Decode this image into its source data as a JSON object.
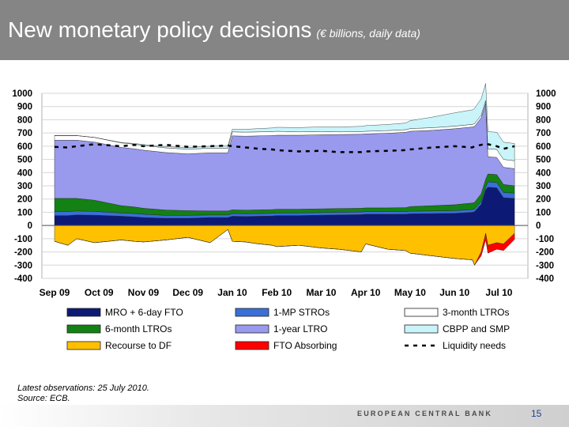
{
  "slide": {
    "title": "New monetary policy decisions",
    "subtitle": "(€ billions, daily data)",
    "note_latest": "Latest observations: 25 July 2010.",
    "note_source": "Source: ECB.",
    "footer_org": "EUROPEAN CENTRAL BANK",
    "page_number": "15"
  },
  "chart_data": {
    "type": "area",
    "title": "",
    "xlabel": "",
    "ylabel": "",
    "ylim": [
      -400,
      1000
    ],
    "yticks": [
      "1000",
      "900",
      "800",
      "700",
      "600",
      "500",
      "400",
      "300",
      "200",
      "100",
      "0",
      "-100",
      "-200",
      "-300",
      "-400"
    ],
    "grid": true,
    "dual_y_axis": true,
    "legend_position": "bottom",
    "x_ticks": [
      "Sep 09",
      "Oct 09",
      "Nov 09",
      "Dec 09",
      "Jan 10",
      "Feb 10",
      "Mar 10",
      "Apr 10",
      "May 10",
      "Jun 10",
      "Jul 10"
    ],
    "x": [
      0,
      0.3,
      0.5,
      0.9,
      1.5,
      1.8,
      2,
      2.5,
      3,
      3.5,
      3.9,
      4,
      4.3,
      4.6,
      4.9,
      5,
      5.5,
      6,
      6.4,
      6.9,
      7,
      7.5,
      7.9,
      8,
      8.5,
      9,
      9.4,
      9.45,
      9.6,
      9.7,
      9.75,
      9.95,
      10.1,
      10.35
    ],
    "series": [
      {
        "name": "MRO + 6-day FTO",
        "color": "#0d1a75",
        "stack": "positive",
        "values": [
          75,
          75,
          80,
          78,
          70,
          65,
          60,
          55,
          55,
          60,
          60,
          70,
          68,
          70,
          72,
          75,
          75,
          78,
          80,
          82,
          85,
          85,
          85,
          88,
          90,
          92,
          100,
          105,
          160,
          270,
          290,
          285,
          210,
          205
        ]
      },
      {
        "name": "1-MP STROs",
        "color": "#3a6fd8",
        "stack": "positive",
        "values": [
          30,
          30,
          30,
          28,
          25,
          25,
          25,
          22,
          22,
          20,
          20,
          20,
          20,
          20,
          20,
          20,
          20,
          20,
          20,
          20,
          20,
          20,
          20,
          20,
          20,
          20,
          20,
          20,
          20,
          20,
          40,
          40,
          40,
          40
        ]
      },
      {
        "name": "6-month LTROs",
        "color": "#138113",
        "stack": "positive",
        "values": [
          100,
          100,
          95,
          85,
          55,
          50,
          45,
          40,
          35,
          30,
          30,
          28,
          28,
          28,
          28,
          28,
          28,
          28,
          28,
          28,
          28,
          28,
          30,
          35,
          40,
          45,
          50,
          50,
          60,
          60,
          60,
          60,
          60,
          55
        ]
      },
      {
        "name": "1-year LTRO",
        "color": "#9999ee",
        "stack": "positive",
        "values": [
          440,
          440,
          440,
          440,
          440,
          440,
          440,
          435,
          430,
          440,
          440,
          560,
          560,
          560,
          560,
          560,
          560,
          560,
          560,
          560,
          560,
          565,
          570,
          570,
          570,
          575,
          575,
          575,
          575,
          575,
          130,
          130,
          130,
          130
        ]
      },
      {
        "name": "3-month LTROs",
        "color": "#ffffff",
        "stack": "positive",
        "values": [
          35,
          35,
          35,
          35,
          35,
          35,
          35,
          35,
          35,
          35,
          35,
          30,
          30,
          30,
          30,
          30,
          25,
          25,
          20,
          20,
          20,
          20,
          20,
          20,
          20,
          20,
          20,
          20,
          20,
          20,
          60,
          60,
          60,
          60
        ]
      },
      {
        "name": "CBPP and SMP",
        "color": "#c8f4fa",
        "stack": "positive",
        "values": [
          0,
          0,
          0,
          0,
          3,
          5,
          8,
          10,
          12,
          15,
          18,
          20,
          22,
          25,
          28,
          30,
          33,
          35,
          38,
          40,
          42,
          46,
          50,
          60,
          80,
          100,
          110,
          115,
          125,
          130,
          130,
          130,
          130,
          130
        ]
      },
      {
        "name": "Recourse to DF",
        "color": "#ffc000",
        "stack": "negative",
        "values": [
          -120,
          -150,
          -100,
          -130,
          -110,
          -120,
          -125,
          -110,
          -90,
          -130,
          -30,
          -120,
          -125,
          -140,
          -150,
          -160,
          -150,
          -170,
          -180,
          -200,
          -140,
          -180,
          -190,
          -210,
          -230,
          -250,
          -260,
          -300,
          -200,
          -60,
          -150,
          -130,
          -140,
          -60
        ]
      },
      {
        "name": "FTO Absorbing",
        "color": "#ff0000",
        "stack": "negative",
        "values": [
          0,
          0,
          0,
          0,
          0,
          0,
          0,
          0,
          0,
          0,
          0,
          0,
          0,
          0,
          0,
          0,
          0,
          0,
          0,
          0,
          0,
          0,
          0,
          0,
          0,
          0,
          0,
          0,
          -30,
          -50,
          -60,
          -50,
          -50,
          -45
        ]
      },
      {
        "name": "Liquidity needs",
        "color": "#000000",
        "stack": "line",
        "values": [
          595,
          590,
          600,
          615,
          600,
          610,
          600,
          610,
          595,
          600,
          605,
          600,
          590,
          580,
          575,
          570,
          560,
          565,
          555,
          555,
          560,
          565,
          570,
          575,
          590,
          600,
          590,
          600,
          610,
          620,
          615,
          600,
          580,
          600
        ]
      }
    ]
  }
}
